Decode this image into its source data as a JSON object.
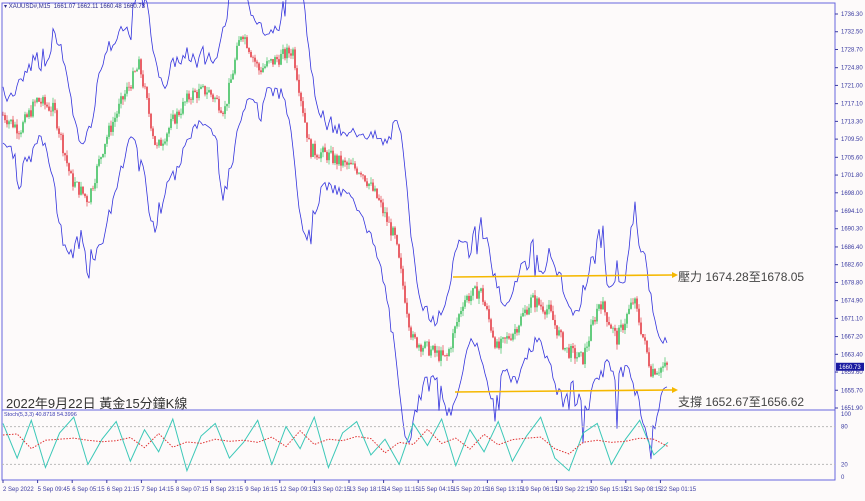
{
  "header": {
    "symbol": "XAUUSD#,M15",
    "ohlc": "1661.07 1662.11 1660.48 1660.73"
  },
  "caption": "2022年9月22日 黃金15分鐘K線",
  "annotations": {
    "resistance": "壓力 1674.28至1678.05",
    "support": "支撐 1652.67至1656.62"
  },
  "stoch_label": "Stoch(5,3,3) 40.8718 54.3996",
  "colors": {
    "bull": "#22b84a",
    "bear": "#e0202a",
    "bands": "#3333dd",
    "arrow": "#f5b800",
    "stoch_main": "#3cc8b8",
    "stoch_signal": "#e03030",
    "axis": "#3a3aa0"
  },
  "chart_data": [
    {
      "type": "candlestick",
      "title": "XAUUSD#,M15",
      "ylim": [
        1651.9,
        1736.3
      ],
      "y_ticks": [
        "1736.30",
        "1732.50",
        "1728.70",
        "1724.80",
        "1721.00",
        "1717.10",
        "1713.30",
        "1709.50",
        "1705.60",
        "1701.80",
        "1698.00",
        "1694.10",
        "1690.30",
        "1686.40",
        "1682.60",
        "1678.80",
        "1674.90",
        "1671.10",
        "1667.20",
        "1663.40",
        "1659.60",
        "1655.70",
        "1651.90"
      ],
      "x_ticks": [
        "2 Sep 2022",
        "5 Sep 09:45",
        "6 Sep 05:15",
        "6 Sep 21:15",
        "7 Sep 14:15",
        "8 Sep 07:15",
        "8 Sep 23:15",
        "9 Sep 16:15",
        "12 Sep 09:15",
        "13 Sep 02:15",
        "13 Sep 18:15",
        "14 Sep 11:15",
        "15 Sep 04:15",
        "15 Sep 20:15",
        "16 Sep 13:15",
        "19 Sep 06:15",
        "19 Sep 22:15",
        "20 Sep 15:15",
        "21 Sep 08:15",
        "22 Sep 01:15"
      ],
      "approx_close": [
        1714.7,
        1711.5,
        1717.9,
        1715.7,
        1700.8,
        1696.5,
        1709.3,
        1717.9,
        1725.4,
        1707.2,
        1713.6,
        1719.0,
        1720.0,
        1715.7,
        1732.9,
        1724.3,
        1726.5,
        1728.6,
        1707.2,
        1706.1,
        1704.0,
        1702.9,
        1696.5,
        1688.0,
        1666.6,
        1664.4,
        1662.3,
        1675.1,
        1677.2,
        1664.4,
        1668.6,
        1675.1,
        1672.9,
        1664.4,
        1662.3,
        1675.1,
        1666.6,
        1675.1,
        1660.1,
        1660.73
      ],
      "last_price": "1660.73",
      "levels": [
        {
          "name": "resistance",
          "from": 1674.28,
          "to": 1678.05
        },
        {
          "name": "support",
          "from": 1652.67,
          "to": 1656.62
        }
      ]
    },
    {
      "type": "line",
      "title": "Stoch(5,3,3)",
      "ylim": [
        0,
        100
      ],
      "y_ticks": [
        "100",
        "80",
        "20",
        "0"
      ],
      "levels": [
        80,
        20
      ],
      "k": [
        85,
        30,
        90,
        15,
        70,
        95,
        20,
        60,
        88,
        25,
        75,
        40,
        92,
        10,
        65,
        85,
        30,
        55,
        90,
        20,
        80,
        45,
        95,
        15,
        70,
        88,
        35,
        60,
        20,
        85,
        50,
        92,
        18,
        75,
        40,
        88,
        25,
        65,
        95,
        30,
        10,
        70,
        85,
        20,
        60,
        90,
        35,
        55
      ]
    }
  ]
}
